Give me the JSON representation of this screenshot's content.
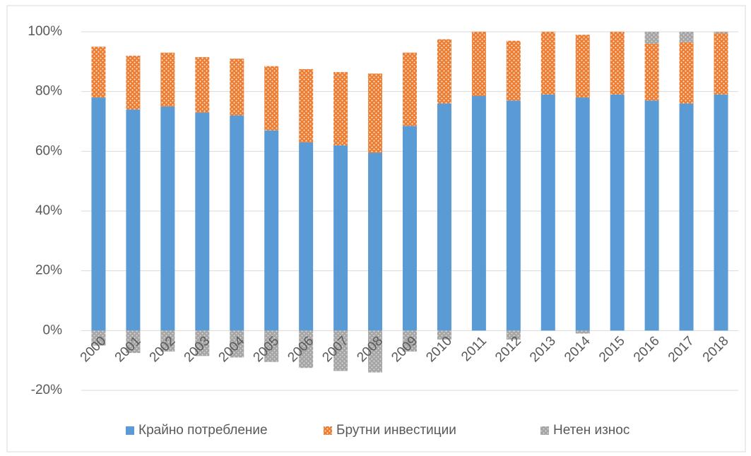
{
  "chart_data": {
    "type": "stacked_bar",
    "categories": [
      "2000",
      "2001",
      "2002",
      "2003",
      "2004",
      "2005",
      "2006",
      "2007",
      "2008",
      "2009",
      "2010",
      "2011",
      "2012",
      "2013",
      "2014",
      "2015",
      "2016",
      "2017",
      "2018"
    ],
    "series": [
      {
        "name": "Крайно потребление",
        "color": "#5b9bd5",
        "values": [
          78,
          74,
          75,
          73,
          72,
          67,
          63,
          62,
          59.5,
          68.5,
          76,
          78.5,
          77,
          79,
          78,
          79,
          77,
          76,
          79
        ]
      },
      {
        "name": "Брутни инвестиции",
        "color": "#ed7d31",
        "values": [
          17,
          18,
          18,
          18.5,
          19,
          21.5,
          24.5,
          24.5,
          26.5,
          24.5,
          21.5,
          21.5,
          20,
          21,
          21,
          21,
          19,
          20.5,
          20.5
        ]
      },
      {
        "name": "Нетен износ",
        "color": "#a5a5a5",
        "values": [
          -5,
          -7.5,
          -7,
          -8.5,
          -9,
          -10.5,
          -12.5,
          -13.5,
          -14,
          -7,
          -3,
          0,
          -3,
          0,
          -1,
          0,
          4,
          3.5,
          0.5
        ]
      }
    ],
    "ylim": [
      -20,
      100
    ],
    "yticks": [
      {
        "value": -20,
        "label": "-20%"
      },
      {
        "value": 0,
        "label": "0%"
      },
      {
        "value": 20,
        "label": "20%"
      },
      {
        "value": 40,
        "label": "40%"
      },
      {
        "value": 60,
        "label": "60%"
      },
      {
        "value": 80,
        "label": "80%"
      },
      {
        "value": 100,
        "label": "100%"
      }
    ],
    "grid": true,
    "legend": "bottom"
  }
}
